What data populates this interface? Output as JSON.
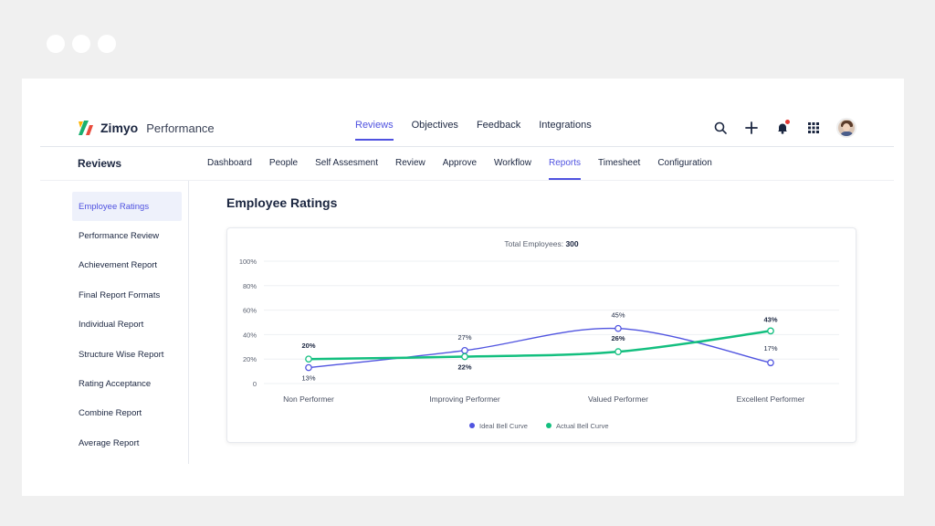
{
  "app": {
    "brand": "Zimyo",
    "product": "Performance"
  },
  "top_nav": [
    "Reviews",
    "Objectives",
    "Feedback",
    "Integrations"
  ],
  "top_nav_active": "Reviews",
  "section_title": "Reviews",
  "sub_nav": [
    "Dashboard",
    "People",
    "Self Assesment",
    "Review",
    "Approve",
    "Workflow",
    "Reports",
    "Timesheet",
    "Configuration"
  ],
  "sub_nav_active": "Reports",
  "sidebar": [
    "Employee Ratings",
    "Performance Review",
    "Achievement Report",
    "Final Report Formats",
    "Individual Report",
    "Structure Wise Report",
    "Rating Acceptance",
    "Combine Report",
    "Average Report"
  ],
  "sidebar_active": "Employee Ratings",
  "content_title": "Employee Ratings",
  "total_label": "Total Employees:",
  "total_value": "300",
  "colors": {
    "accent": "#4f52e0",
    "ideal": "#5054e0",
    "actual": "#13bf7f"
  },
  "icons": [
    "search-icon",
    "plus-icon",
    "bell-icon",
    "apps-grid-icon",
    "avatar"
  ],
  "chart_data": {
    "type": "line",
    "categories": [
      "Non Performer",
      "Improving Performer",
      "Valued Performer",
      "Excellent Performer"
    ],
    "y_ticks": [
      "0",
      "20%",
      "40%",
      "60%",
      "80%",
      "100%"
    ],
    "ylim": [
      0,
      100
    ],
    "series": [
      {
        "name": "Ideal Bell Curve",
        "values": [
          13,
          27,
          45,
          17
        ],
        "labels": [
          "13%",
          "27%",
          "45%",
          "17%"
        ],
        "color": "#5054e0"
      },
      {
        "name": "Actual Bell Curve",
        "values": [
          20,
          22,
          26,
          43
        ],
        "labels": [
          "20%",
          "22%",
          "26%",
          "43%"
        ],
        "color": "#13bf7f"
      }
    ],
    "legend": "bottom-center",
    "grid": true
  }
}
